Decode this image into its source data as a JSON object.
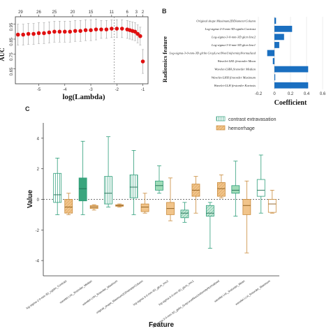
{
  "colors": {
    "red": "#e01010",
    "blue": "#1a6fc0",
    "teal": "#2e9e7a",
    "teal_fill": "#c8ead8",
    "orange": "#c98a3a",
    "orange_fill": "#f1c48a"
  },
  "panel_a": {
    "top_counts": [
      "29",
      "26",
      "25",
      "20",
      "15",
      "11",
      "6",
      "3",
      "2"
    ],
    "y_ticks": [
      "0.95",
      "0.85",
      "0.75",
      "0.65"
    ],
    "x_ticks": [
      "-5",
      "-4",
      "-3",
      "-2",
      "-1"
    ],
    "ylabel": "AUC",
    "xlabel": "log(Lambda)"
  },
  "panel_b": {
    "letter": "B",
    "ylabel": "Radiomics feature",
    "xlabel": "Coefficient",
    "x_ticks": [
      "-0.2",
      "0",
      "0.2",
      "0.4",
      "0.6"
    ]
  },
  "panel_c": {
    "letter": "C",
    "ylabel": "Value",
    "xlabel": "Feature",
    "y_ticks": [
      "4",
      "2",
      "0",
      "-2",
      "-4"
    ],
    "legend": [
      "contrast extravasation",
      "hemorrhage"
    ]
  },
  "chart_data": [
    {
      "type": "line",
      "panel": "A",
      "xlabel": "log(Lambda)",
      "ylabel": "AUC",
      "xlim": [
        -5.9,
        -0.8
      ],
      "ylim": [
        0.55,
        1.0
      ],
      "top_axis_counts": [
        29,
        26,
        25,
        20,
        15,
        11,
        6,
        3,
        2
      ],
      "x": [
        -5.8,
        -5.6,
        -5.4,
        -5.2,
        -5.0,
        -4.8,
        -4.6,
        -4.4,
        -4.2,
        -4.0,
        -3.8,
        -3.6,
        -3.4,
        -3.2,
        -3.0,
        -2.8,
        -2.6,
        -2.4,
        -2.2,
        -2.0,
        -1.8,
        -1.6,
        -1.5,
        -1.4,
        -1.3,
        -1.2,
        -1.1,
        -1.0
      ],
      "auc": [
        0.88,
        0.88,
        0.885,
        0.885,
        0.89,
        0.89,
        0.895,
        0.9,
        0.9,
        0.9,
        0.9,
        0.905,
        0.905,
        0.91,
        0.91,
        0.915,
        0.915,
        0.915,
        0.92,
        0.92,
        0.92,
        0.915,
        0.91,
        0.905,
        0.9,
        0.885,
        0.87,
        0.7
      ],
      "err": [
        0.07,
        0.07,
        0.07,
        0.07,
        0.07,
        0.07,
        0.07,
        0.07,
        0.07,
        0.07,
        0.07,
        0.07,
        0.07,
        0.07,
        0.07,
        0.07,
        0.06,
        0.06,
        0.06,
        0.06,
        0.06,
        0.06,
        0.06,
        0.06,
        0.06,
        0.06,
        0.06,
        0.08
      ],
      "dashed_line_x": -2.1
    },
    {
      "type": "bar",
      "panel": "B",
      "orientation": "horizontal",
      "xlabel": "Coefficient",
      "ylabel": "Radiomics feature",
      "xlim": [
        -0.2,
        0.6
      ],
      "categories": [
        "Original_shape_Maximum2DDiameterColumn",
        "Log-sigma-2-0-mm-3D_ngtdm_Contrast",
        "Log-sigma-3-0-mm-3D_glcm_Imc2",
        "Log-sigma-3-0-mm-3D_glcm_Imc1",
        "Log-sigma-3-0-mm-3D_glrlm_GrayLevelNonUniformityNormalized",
        "Wavelet-LHL_firstorder_Mean",
        "Wavelet-LHH_firstorder_Median",
        "Wavelet-LHH_firstorder_Maximum",
        "Wavelet-LLH_firstorder_Kurtosis"
      ],
      "values": [
        0.02,
        0.22,
        0.12,
        0.06,
        -0.09,
        -0.02,
        0.42,
        0.01,
        0.42
      ]
    },
    {
      "type": "box",
      "panel": "C",
      "xlabel": "Feature",
      "ylabel": "Value",
      "ylim": [
        -5,
        5
      ],
      "series_names": [
        "contrast extravasation",
        "hemorrhage"
      ],
      "features": [
        {
          "label": "log-sigma-2-0-mm-3D_ngtdm_Contrast",
          "contrast extravasation": {
            "min": -1.0,
            "q1": -0.2,
            "med": 0.3,
            "q3": 1.7,
            "max": 2.7
          },
          "hemorrhage": {
            "min": -1.0,
            "q1": -0.9,
            "med": -0.5,
            "q3": 0.0,
            "max": 0.4
          }
        },
        {
          "label": "wavelet-LHL_firstorder_Median",
          "contrast extravasation": {
            "min": -1.0,
            "q1": -0.1,
            "med": 0.7,
            "q3": 1.4,
            "max": 3.8
          },
          "hemorrhage": {
            "min": -0.7,
            "q1": -0.6,
            "med": -0.5,
            "q3": -0.4,
            "max": -0.35
          }
        },
        {
          "label": "wavelet-LHH_firstorder_Maximum",
          "contrast extravasation": {
            "min": -0.5,
            "q1": -0.3,
            "med": 0.4,
            "q3": 1.5,
            "max": 4.1
          },
          "hemorrhage": {
            "min": -0.5,
            "q1": -0.45,
            "med": -0.4,
            "q3": -0.35,
            "max": -0.3
          }
        },
        {
          "label": "original_shape_Maximum2DDiameterColumn",
          "contrast extravasation": {
            "min": -1.0,
            "q1": 0.1,
            "med": 0.8,
            "q3": 1.6,
            "max": 3.2
          },
          "hemorrhage": {
            "min": -0.9,
            "q1": -0.8,
            "med": -0.5,
            "q3": -0.3,
            "max": 0.4
          }
        },
        {
          "label": "log-sigma-3-0-mm-3D_glcm_Imc2",
          "contrast extravasation": {
            "min": 0.4,
            "q1": 0.6,
            "med": 0.9,
            "q3": 1.2,
            "max": 2.2
          },
          "hemorrhage": {
            "min": -1.4,
            "q1": -1.0,
            "med": -0.6,
            "q3": -0.2,
            "max": 1.4
          }
        },
        {
          "label": "log-sigma-3-0-mm-3D_glcm_Imc1",
          "contrast extravasation": {
            "min": -1.5,
            "q1": -1.2,
            "med": -0.9,
            "q3": -0.7,
            "max": -0.2
          },
          "hemorrhage": {
            "min": -0.9,
            "q1": 0.2,
            "med": 0.6,
            "q3": 1.0,
            "max": 1.5
          }
        },
        {
          "label": "log-sigma-3-0-mm-3D_glrlm_GrayLevelNonUniformityNormalized",
          "contrast extravasation": {
            "min": -3.2,
            "q1": -1.1,
            "med": -0.9,
            "q3": -0.4,
            "max": -0.2
          },
          "hemorrhage": {
            "min": 0.1,
            "q1": 0.2,
            "med": 0.7,
            "q3": 1.1,
            "max": 1.6
          }
        },
        {
          "label": "wavelet-LHL_firstorder_Mean",
          "contrast extravasation": {
            "min": -1.1,
            "q1": 0.4,
            "med": 0.6,
            "q3": 0.9,
            "max": 2.5
          },
          "hemorrhage": {
            "min": -3.5,
            "q1": -1.0,
            "med": -0.4,
            "q3": 0.0,
            "max": 1.2
          }
        },
        {
          "label": "wavelet-LLH_firstorder_Maximum",
          "contrast extravasation": {
            "min": -0.9,
            "q1": 0.2,
            "med": 0.6,
            "q3": 1.3,
            "max": 2.9
          },
          "hemorrhage": {
            "min": -0.9,
            "q1": -0.85,
            "med": -0.3,
            "q3": 0.0,
            "max": 0.6
          }
        }
      ]
    }
  ]
}
